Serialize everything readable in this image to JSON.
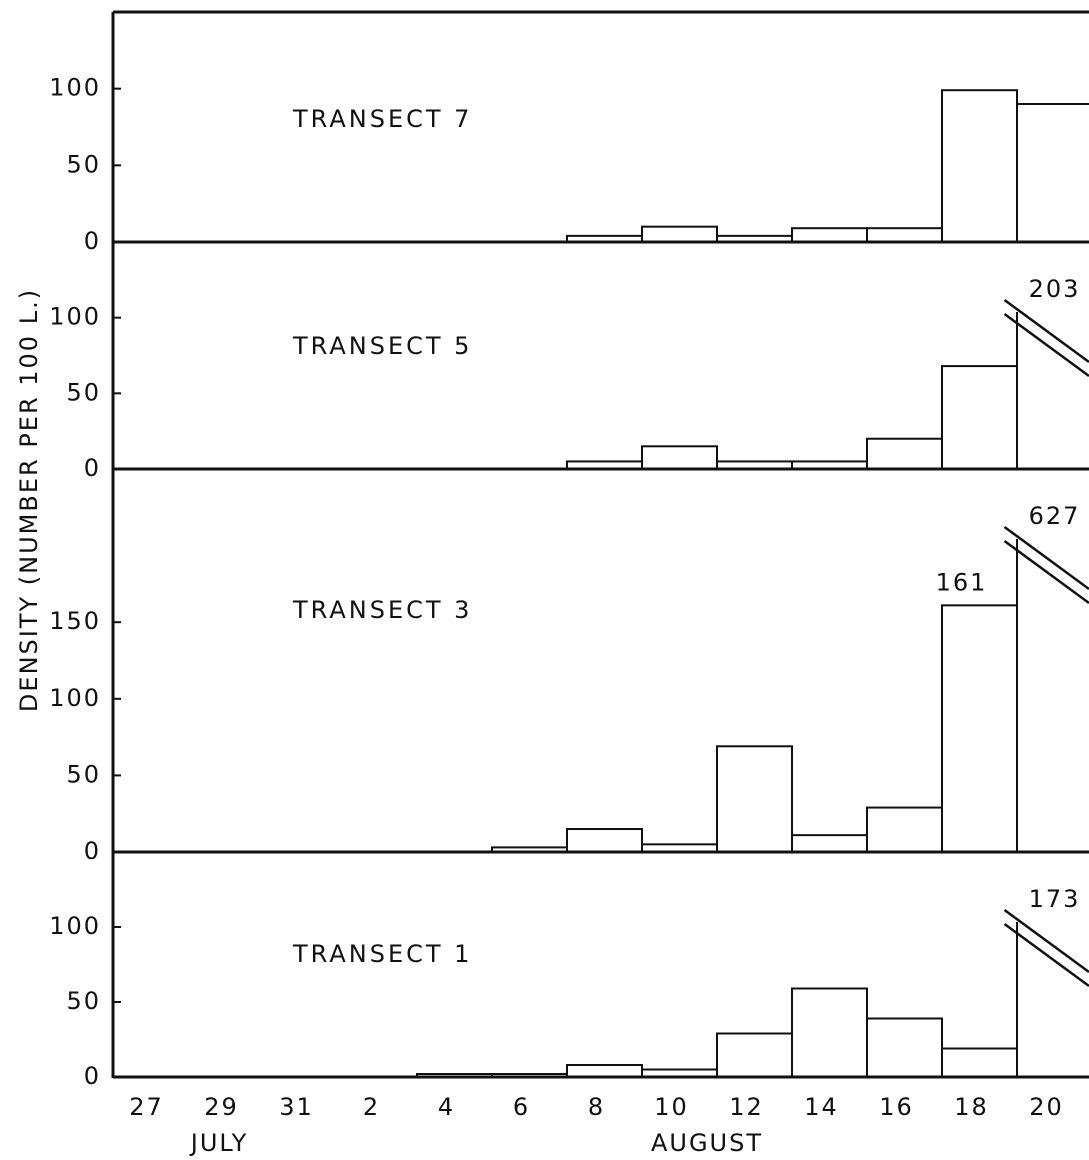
{
  "ylabel": "DENSITY (NUMBER PER 100 L.)",
  "x_axis": {
    "categories": [
      "27",
      "29",
      "31",
      "2",
      "4",
      "6",
      "8",
      "10",
      "12",
      "14",
      "16",
      "18",
      "20"
    ],
    "months": [
      {
        "label": "JULY",
        "from": 0,
        "to": 2
      },
      {
        "label": "AUGUST",
        "from": 3,
        "to": 12
      }
    ]
  },
  "chart_data": [
    {
      "type": "bar",
      "title": "TRANSECT 7",
      "values": [
        0,
        0,
        0,
        0,
        0,
        0,
        4,
        10,
        4,
        9,
        9,
        99,
        90
      ],
      "value_labels": [
        null,
        null,
        null,
        null,
        null,
        null,
        null,
        null,
        null,
        null,
        null,
        null,
        null
      ],
      "ylim": [
        0,
        150
      ],
      "yticks": [
        0,
        50,
        100
      ],
      "color": "#ffffff"
    },
    {
      "type": "bar",
      "title": "TRANSECT 5",
      "values": [
        0,
        0,
        0,
        0,
        0,
        0,
        5,
        15,
        5,
        5,
        20,
        68,
        203
      ],
      "value_labels": [
        null,
        null,
        null,
        null,
        null,
        null,
        null,
        null,
        null,
        null,
        null,
        null,
        "203"
      ],
      "ylim": [
        0,
        150
      ],
      "yticks": [
        0,
        50,
        100
      ],
      "color": "#ffffff"
    },
    {
      "type": "bar",
      "title": "TRANSECT 3",
      "values": [
        0,
        0,
        0,
        0,
        0,
        3,
        15,
        5,
        69,
        11,
        29,
        161,
        627
      ],
      "value_labels": [
        null,
        null,
        null,
        null,
        null,
        null,
        null,
        null,
        null,
        null,
        null,
        "161",
        "627"
      ],
      "ylim": [
        0,
        250
      ],
      "yticks": [
        0,
        50,
        100,
        150
      ],
      "color": "#ffffff"
    },
    {
      "type": "bar",
      "title": "TRANSECT 1",
      "values": [
        0,
        0,
        0,
        0,
        2,
        2,
        8,
        5,
        29,
        59,
        39,
        19,
        173
      ],
      "value_labels": [
        null,
        null,
        null,
        null,
        null,
        null,
        null,
        null,
        null,
        null,
        null,
        null,
        "173"
      ],
      "ylim": [
        0,
        150
      ],
      "yticks": [
        0,
        50,
        100
      ],
      "color": "#ffffff"
    }
  ]
}
